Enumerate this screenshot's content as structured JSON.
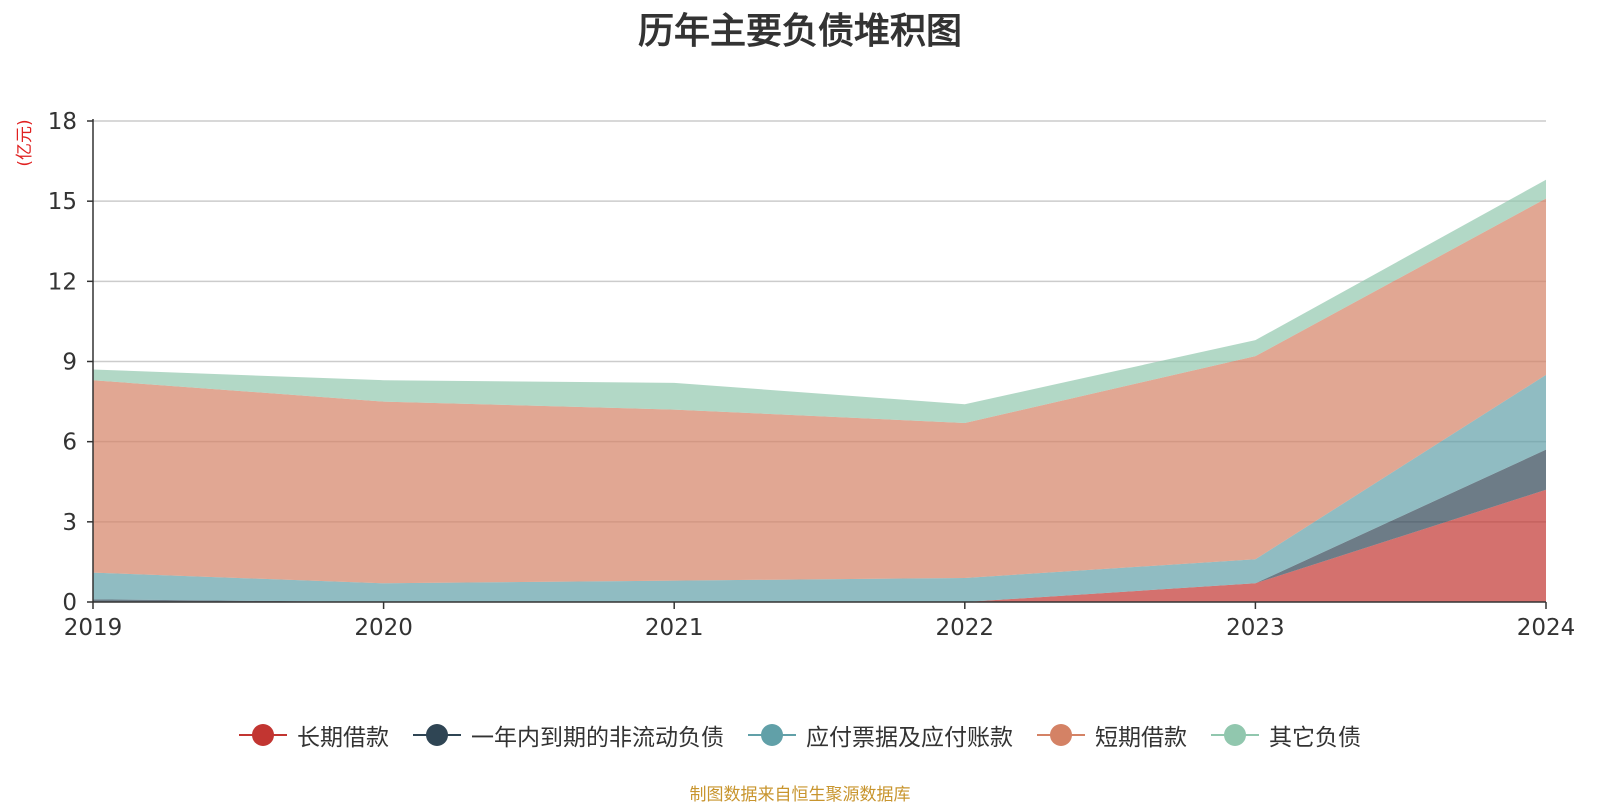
{
  "chart_data": {
    "type": "area",
    "stacked": true,
    "title": "历年主要负债堆积图",
    "ylabel": "(亿元)",
    "xlabel": "",
    "categories": [
      "2019",
      "2020",
      "2021",
      "2022",
      "2023",
      "2024"
    ],
    "ylim": [
      0,
      18
    ],
    "yticks": [
      0,
      3,
      6,
      9,
      12,
      15,
      18
    ],
    "grid": true,
    "legend_position": "bottom",
    "series": [
      {
        "name": "长期借款",
        "color": "#c23531",
        "values": [
          0.0,
          0.0,
          0.0,
          0.0,
          0.7,
          4.2
        ]
      },
      {
        "name": "一年内到期的非流动负债",
        "color": "#2f4554",
        "values": [
          0.1,
          0.0,
          0.0,
          0.0,
          0.0,
          1.5
        ]
      },
      {
        "name": "应付票据及应付账款",
        "color": "#61a0a8",
        "values": [
          1.0,
          0.7,
          0.8,
          0.9,
          0.9,
          2.8
        ]
      },
      {
        "name": "短期借款",
        "color": "#d48265",
        "values": [
          7.2,
          6.8,
          6.4,
          5.8,
          7.6,
          6.6
        ]
      },
      {
        "name": "其它负债",
        "color": "#91c7ae",
        "values": [
          0.4,
          0.8,
          1.0,
          0.7,
          0.6,
          0.7
        ]
      }
    ]
  },
  "source_note": "制图数据来自恒生聚源数据库"
}
